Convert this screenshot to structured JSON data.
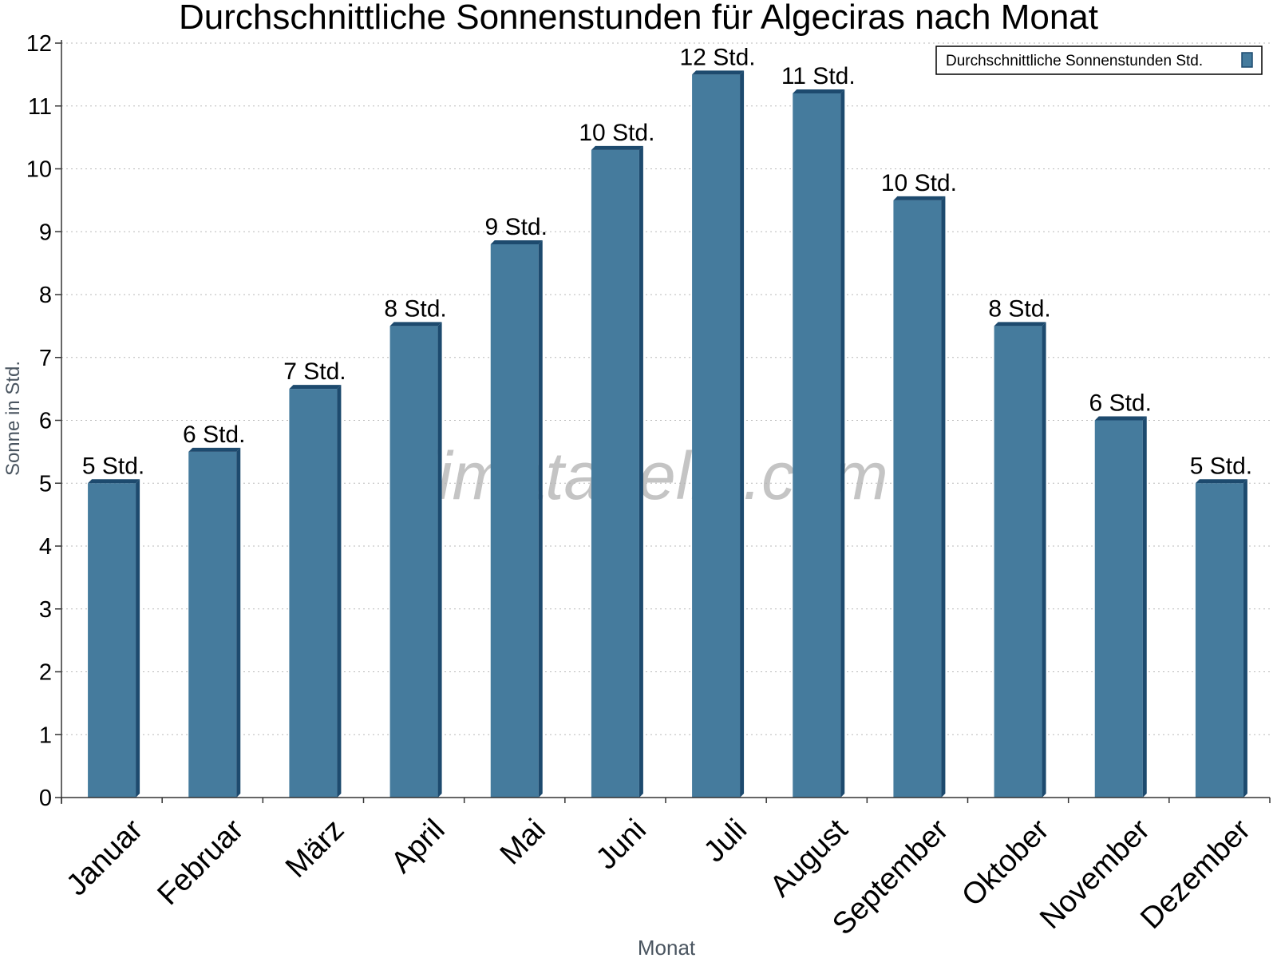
{
  "chart_data": {
    "type": "bar",
    "title": "Durchschnittliche Sonnenstunden für Algeciras nach Monat",
    "xlabel": "Monat",
    "ylabel": "Sonne in Std.",
    "watermark": "klimatabelle.com",
    "categories": [
      "Januar",
      "Februar",
      "März",
      "April",
      "Mai",
      "Juni",
      "Juli",
      "August",
      "September",
      "Oktober",
      "November",
      "Dezember"
    ],
    "series": [
      {
        "name": "Durchschnittliche Sonnenstunden Std.",
        "values": [
          5.0,
          5.5,
          6.5,
          7.5,
          8.8,
          10.3,
          11.5,
          11.2,
          9.5,
          7.5,
          6.0,
          5.0
        ],
        "data_labels": [
          "5 Std.",
          "6 Std.",
          "7 Std.",
          "8 Std.",
          "9 Std.",
          "10 Std.",
          "12 Std.",
          "11 Std.",
          "10 Std.",
          "8 Std.",
          "6 Std.",
          "5 Std."
        ],
        "color": "#457b9d",
        "side_color": "#1d4a6e"
      }
    ],
    "ylim": [
      0,
      12
    ],
    "yticks": [
      0,
      1,
      2,
      3,
      4,
      5,
      6,
      7,
      8,
      9,
      10,
      11,
      12
    ],
    "grid": true,
    "legend_position": "top-right"
  }
}
